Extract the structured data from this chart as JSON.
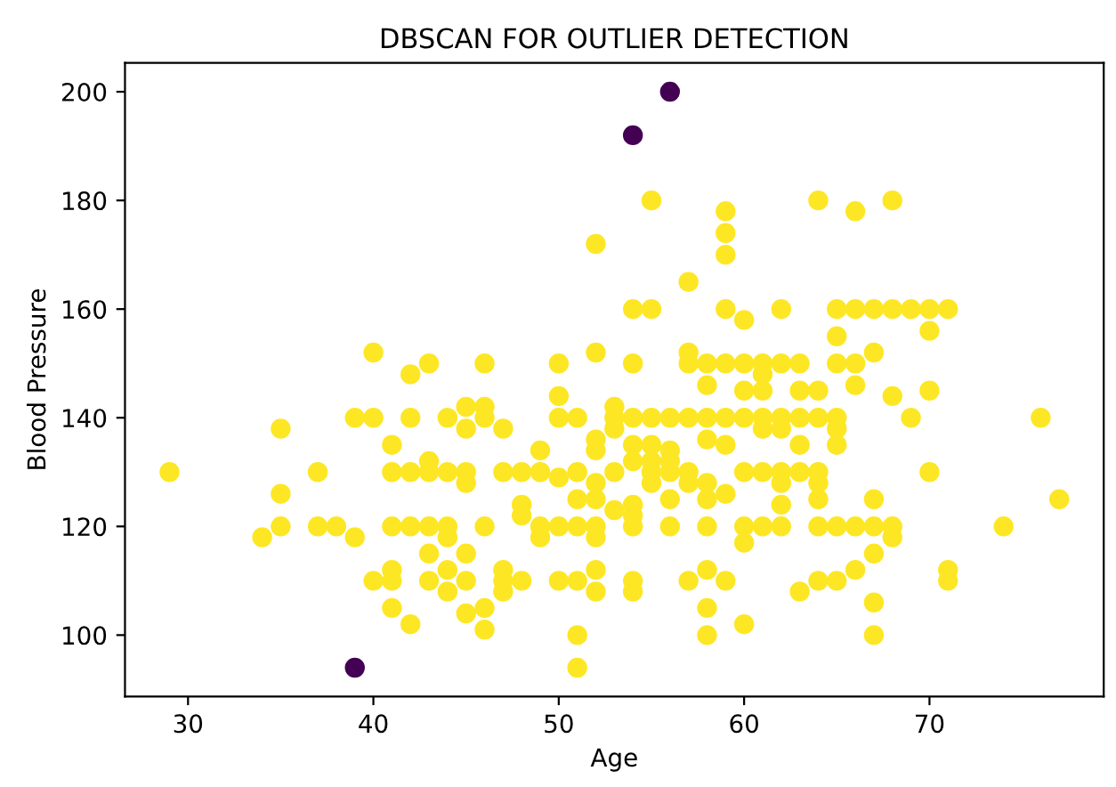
{
  "chart_data": {
    "type": "scatter",
    "title": "DBSCAN FOR OUTLIER DETECTION",
    "xlabel": "Age",
    "ylabel": "Blood Pressure",
    "xlim": [
      26.6,
      79.4
    ],
    "ylim": [
      88.7,
      205.3
    ],
    "xticks": [
      30,
      40,
      50,
      60,
      70
    ],
    "yticks": [
      100,
      120,
      140,
      160,
      180,
      200
    ],
    "grid": false,
    "marker": "circle",
    "series": [
      {
        "color": "#fde725",
        "x": [
          29,
          34,
          35,
          35,
          35,
          37,
          37,
          38,
          39,
          39,
          40,
          40,
          40,
          41,
          41,
          41,
          41,
          41,
          41,
          42,
          42,
          42,
          42,
          42,
          43,
          43,
          43,
          43,
          43,
          43,
          44,
          44,
          44,
          44,
          44,
          44,
          45,
          45,
          45,
          45,
          45,
          45,
          45,
          46,
          46,
          46,
          46,
          46,
          46,
          47,
          47,
          47,
          47,
          47,
          48,
          48,
          48,
          48,
          49,
          49,
          49,
          49,
          50,
          50,
          50,
          50,
          50,
          50,
          51,
          51,
          51,
          51,
          51,
          51,
          51,
          52,
          52,
          52,
          52,
          52,
          52,
          52,
          52,
          52,
          52,
          53,
          53,
          53,
          53,
          53,
          54,
          54,
          54,
          54,
          54,
          54,
          54,
          54,
          54,
          54,
          55,
          55,
          55,
          55,
          55,
          55,
          55,
          56,
          56,
          56,
          56,
          56,
          56,
          57,
          57,
          57,
          57,
          57,
          57,
          57,
          58,
          58,
          58,
          58,
          58,
          58,
          58,
          58,
          58,
          58,
          59,
          59,
          59,
          59,
          59,
          59,
          59,
          59,
          59,
          60,
          60,
          60,
          60,
          60,
          60,
          60,
          60,
          61,
          61,
          61,
          61,
          61,
          61,
          61,
          62,
          62,
          62,
          62,
          62,
          62,
          62,
          62,
          63,
          63,
          63,
          63,
          63,
          63,
          64,
          64,
          64,
          64,
          64,
          64,
          64,
          64,
          65,
          65,
          65,
          65,
          65,
          65,
          65,
          65,
          66,
          66,
          66,
          66,
          66,
          66,
          67,
          67,
          67,
          67,
          67,
          67,
          67,
          68,
          68,
          68,
          68,
          68,
          69,
          69,
          70,
          70,
          70,
          70,
          71,
          71,
          71,
          74,
          76,
          77
        ],
        "values": [
          130,
          118,
          120,
          126,
          138,
          120,
          130,
          120,
          118,
          140,
          140,
          152,
          110,
          105,
          110,
          112,
          120,
          130,
          135,
          102,
          120,
          130,
          140,
          148,
          110,
          115,
          120,
          130,
          132,
          150,
          108,
          112,
          118,
          120,
          130,
          140,
          104,
          110,
          115,
          128,
          130,
          138,
          142,
          101,
          105,
          120,
          140,
          142,
          150,
          108,
          110,
          112,
          130,
          138,
          110,
          122,
          124,
          130,
          118,
          120,
          130,
          134,
          110,
          120,
          129,
          140,
          144,
          150,
          94,
          100,
          110,
          120,
          125,
          130,
          140,
          108,
          112,
          118,
          120,
          125,
          128,
          134,
          136,
          152,
          172,
          123,
          130,
          138,
          140,
          142,
          108,
          110,
          120,
          122,
          124,
          132,
          135,
          140,
          150,
          160,
          128,
          130,
          132,
          135,
          140,
          160,
          180,
          120,
          125,
          130,
          132,
          134,
          140,
          110,
          128,
          130,
          140,
          150,
          152,
          165,
          100,
          105,
          112,
          120,
          125,
          128,
          136,
          140,
          146,
          150,
          110,
          126,
          135,
          140,
          150,
          160,
          170,
          174,
          178,
          102,
          117,
          120,
          130,
          140,
          145,
          150,
          158,
          120,
          130,
          138,
          140,
          145,
          148,
          150,
          120,
          124,
          128,
          130,
          138,
          140,
          150,
          160,
          108,
          130,
          135,
          140,
          145,
          150,
          110,
          120,
          125,
          128,
          130,
          140,
          145,
          180,
          110,
          120,
          135,
          138,
          140,
          150,
          155,
          160,
          112,
          120,
          146,
          150,
          160,
          178,
          100,
          106,
          115,
          120,
          125,
          152,
          160,
          118,
          120,
          144,
          160,
          180,
          140,
          160,
          130,
          145,
          156,
          160,
          110,
          112,
          160,
          120,
          140,
          125
        ]
      },
      {
        "color": "#440154",
        "x": [
          39,
          54,
          56
        ],
        "values": [
          94,
          192,
          200
        ]
      }
    ]
  }
}
